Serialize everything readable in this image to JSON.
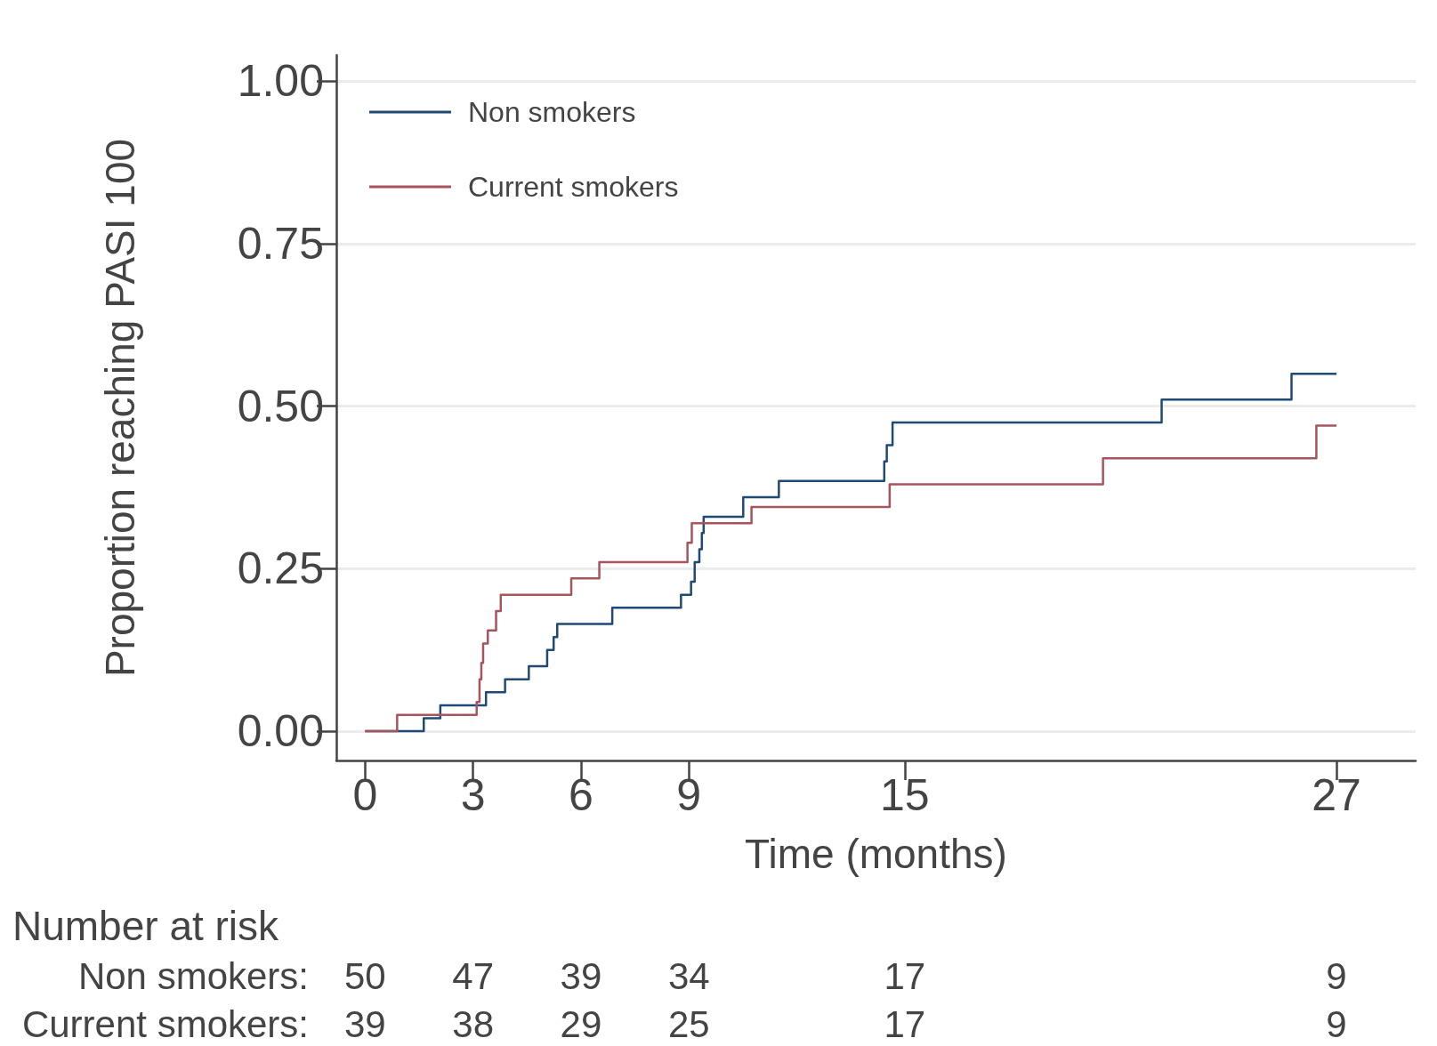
{
  "chart_data": {
    "type": "step",
    "xlabel": "Time (months)",
    "ylabel": "Proportion reaching PASI 100",
    "series": [
      {
        "name": "Non smokers",
        "color": "#1f4a75",
        "x": [
          0,
          1.63,
          2.09,
          3.36,
          3.89,
          4.55,
          5.06,
          5.24,
          5.34,
          6.87,
          8.78,
          9.06,
          9.16,
          9.29,
          9.36,
          9.41,
          10.51,
          11.5,
          14.43,
          14.5,
          14.66,
          22.14,
          25.75,
          27
        ],
        "values": [
          0,
          0.02,
          0.04,
          0.06,
          0.08,
          0.1,
          0.125,
          0.145,
          0.165,
          0.19,
          0.21,
          0.23,
          0.26,
          0.28,
          0.305,
          0.33,
          0.36,
          0.385,
          0.415,
          0.44,
          0.475,
          0.51,
          0.55,
          0.55
        ]
      },
      {
        "name": "Current smokers",
        "color": "#a8545e",
        "x": [
          0,
          0.89,
          3.1,
          3.18,
          3.23,
          3.28,
          3.41,
          3.64,
          3.77,
          5.73,
          6.51,
          8.96,
          9.08,
          10.74,
          14.58,
          20.51,
          26.44,
          27
        ],
        "values": [
          0,
          0.025,
          0.045,
          0.08,
          0.105,
          0.135,
          0.155,
          0.185,
          0.21,
          0.235,
          0.26,
          0.29,
          0.32,
          0.345,
          0.38,
          0.42,
          0.47,
          0.47
        ]
      }
    ],
    "xlim": [
      -0.8,
      29.2
    ],
    "xticks": [
      0,
      3,
      6,
      9,
      15,
      27
    ],
    "ylim": [
      -0.045,
      1.04
    ],
    "yticks": [
      {
        "value": 0,
        "label": "0.00"
      },
      {
        "value": 0.25,
        "label": "0.25"
      },
      {
        "value": 0.5,
        "label": "0.50"
      },
      {
        "value": 0.75,
        "label": "0.75"
      },
      {
        "value": 1,
        "label": "1.00"
      }
    ],
    "grid": "y",
    "legend": "top left",
    "line_style": "solid",
    "marker": "none",
    "annotations": [
      "Number at risk",
      "Non smokers:",
      "50",
      "47",
      "39",
      "34",
      "17",
      "9",
      "Current smokers:",
      "39",
      "38",
      "29",
      "25",
      "17",
      "9"
    ]
  }
}
